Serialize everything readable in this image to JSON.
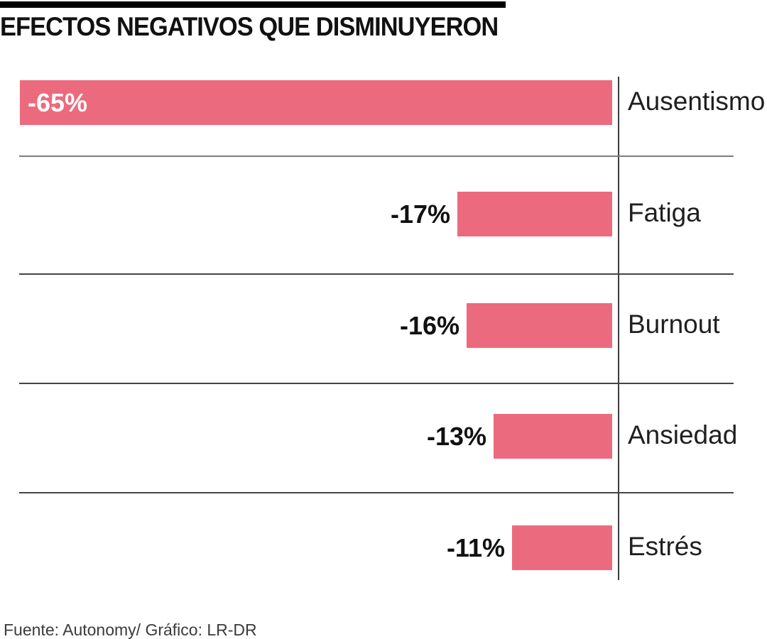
{
  "header": {
    "title": "EFECTOS NEGATIVOS QUE DISMINUYERON"
  },
  "footer": {
    "source": "Fuente: Autonomy/ Gráfico: LR-DR"
  },
  "colors": {
    "top_bar": "#000000",
    "title": "#111111",
    "bar": "#EC6A7E",
    "value_label_inside": "#FFFFFF",
    "value_label_outside": "#111111",
    "category_label": "#1F1F1F",
    "axis_line": "#3C3C3C",
    "separator_first": "#7D7D7D",
    "separator_rest": "#454545",
    "background": "#FFFFFF"
  },
  "chart_data": {
    "type": "bar",
    "orientation": "horizontal",
    "title": "EFECTOS NEGATIVOS QUE DISMINUYERON",
    "categories": [
      "Ausentismo",
      "Fatiga",
      "Burnout",
      "Ansiedad",
      "Estrés"
    ],
    "values": [
      -65,
      -17,
      -16,
      -13,
      -11
    ],
    "value_labels": [
      "-65%",
      "-17%",
      "-16%",
      "-13%",
      "-11%"
    ],
    "value_label_position": [
      "inside-left",
      "outside-left",
      "outside-left",
      "outside-left",
      "outside-left"
    ],
    "xlabel": "",
    "ylabel": "",
    "xlim": [
      -65,
      0
    ],
    "bar_color": "#EC6A7E",
    "legend": "none",
    "grid": "horizontal row separators",
    "source": "Fuente: Autonomy/ Gráfico: LR-DR"
  }
}
